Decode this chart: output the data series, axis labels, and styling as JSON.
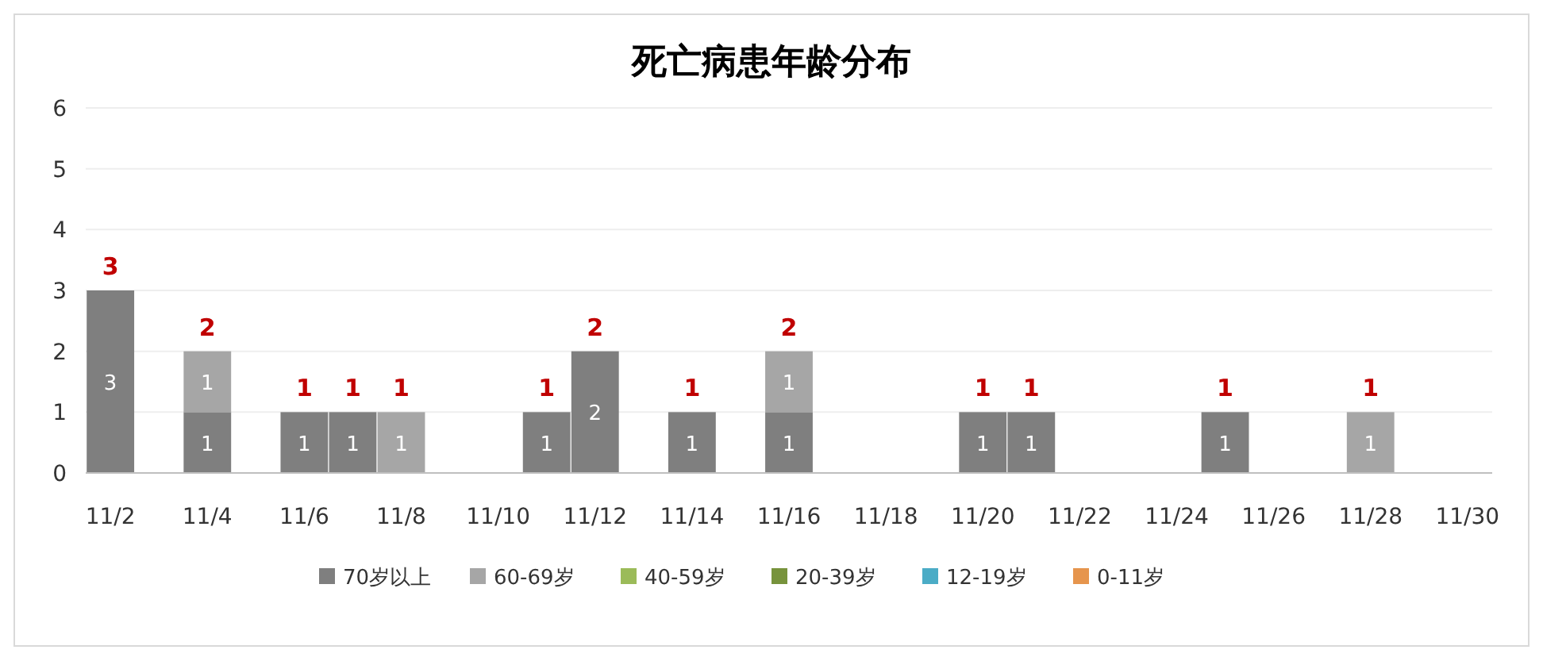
{
  "chart_data": {
    "type": "bar",
    "title": "死亡病患年龄分布",
    "stacked": true,
    "categories": [
      "11/2",
      null,
      "11/4",
      null,
      "11/6",
      null,
      "11/8",
      null,
      "11/10",
      null,
      "11/12",
      null,
      "11/14",
      null,
      "11/16",
      null,
      "11/18",
      null,
      "11/20",
      null,
      "11/22",
      null,
      "11/24",
      null,
      "11/26",
      null,
      "11/28",
      null,
      "11/30"
    ],
    "series": [
      {
        "name": "70岁以上",
        "color": "#7f7f7f",
        "values": [
          3,
          null,
          1,
          null,
          1,
          1,
          null,
          null,
          null,
          1,
          2,
          null,
          1,
          null,
          1,
          null,
          null,
          null,
          1,
          1,
          null,
          null,
          null,
          1,
          null,
          null,
          null,
          null,
          null
        ]
      },
      {
        "name": "60-69岁",
        "color": "#a6a6a6",
        "values": [
          null,
          null,
          1,
          null,
          null,
          null,
          1,
          null,
          null,
          null,
          null,
          null,
          null,
          null,
          1,
          null,
          null,
          null,
          null,
          null,
          null,
          null,
          null,
          null,
          null,
          null,
          1,
          null,
          null
        ]
      },
      {
        "name": "40-59岁",
        "color": "#9bbb59",
        "values": [
          null,
          null,
          null,
          null,
          null,
          null,
          null,
          null,
          null,
          null,
          null,
          null,
          null,
          null,
          null,
          null,
          null,
          null,
          null,
          null,
          null,
          null,
          null,
          null,
          null,
          null,
          null,
          null,
          null
        ]
      },
      {
        "name": "20-39岁",
        "color": "#77933c",
        "values": [
          null,
          null,
          null,
          null,
          null,
          null,
          null,
          null,
          null,
          null,
          null,
          null,
          null,
          null,
          null,
          null,
          null,
          null,
          null,
          null,
          null,
          null,
          null,
          null,
          null,
          null,
          null,
          null,
          null
        ]
      },
      {
        "name": "12-19岁",
        "color": "#4bacc6",
        "values": [
          null,
          null,
          null,
          null,
          null,
          null,
          null,
          null,
          null,
          null,
          null,
          null,
          null,
          null,
          null,
          null,
          null,
          null,
          null,
          null,
          null,
          null,
          null,
          null,
          null,
          null,
          null,
          null,
          null
        ]
      },
      {
        "name": "0-11岁",
        "color": "#e6954d",
        "values": [
          null,
          null,
          null,
          null,
          null,
          null,
          null,
          null,
          null,
          null,
          null,
          null,
          null,
          null,
          null,
          null,
          null,
          null,
          null,
          null,
          null,
          null,
          null,
          null,
          null,
          null,
          null,
          null,
          null
        ]
      }
    ],
    "totals": [
      "3",
      null,
      "2",
      null,
      "1",
      "1",
      "1",
      null,
      null,
      "1",
      "2",
      null,
      "1",
      null,
      "2",
      null,
      null,
      null,
      "1",
      "1",
      null,
      null,
      null,
      "1",
      null,
      null,
      "1",
      null,
      null
    ],
    "data_labels": true,
    "ylim": [
      0,
      6
    ],
    "yticks": [
      0,
      1,
      2,
      3,
      4,
      5,
      6
    ],
    "grid": "y",
    "legend": "bottom"
  }
}
